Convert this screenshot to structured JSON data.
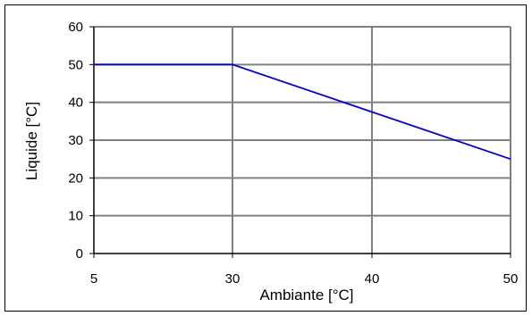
{
  "chart_data": {
    "type": "line",
    "xlabel": "Ambiante [°C]",
    "ylabel": "Liquide  [°C]",
    "x_categories": [
      "5",
      "30",
      "40",
      "50"
    ],
    "y_ticks": [
      "0",
      "10",
      "20",
      "30",
      "40",
      "50",
      "60"
    ],
    "ylim": [
      0,
      60
    ],
    "grid": true,
    "series": [
      {
        "x": [
          5,
          30,
          50
        ],
        "y": [
          50,
          50,
          25
        ]
      }
    ],
    "colors": {
      "series": "#0000cc",
      "grid": "#808080",
      "axis": "#000000"
    }
  }
}
